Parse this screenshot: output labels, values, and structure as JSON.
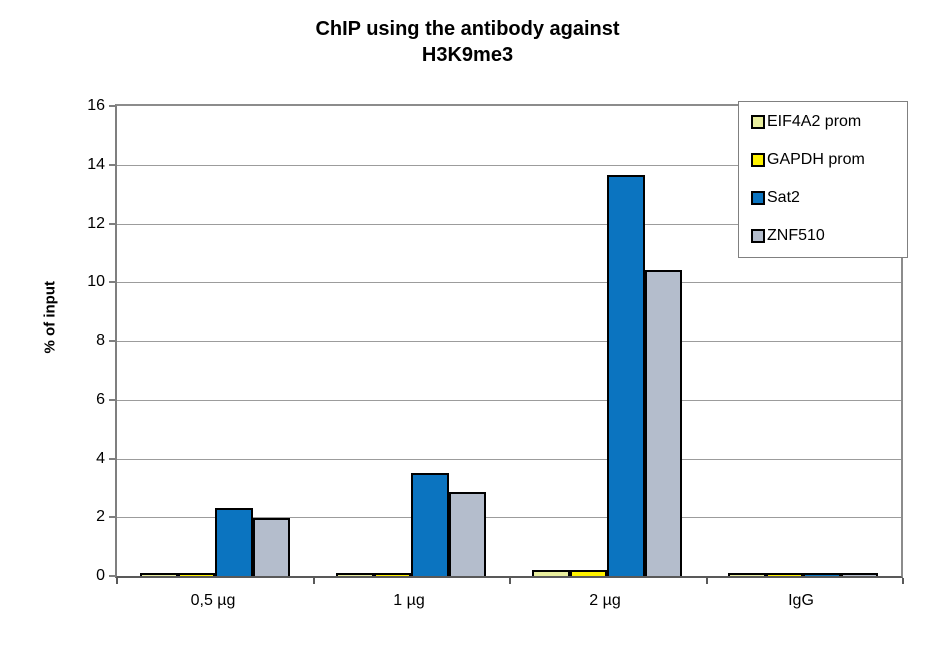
{
  "title": {
    "line1": "ChIP using the antibody against",
    "line2": "H3K9me3"
  },
  "chart_data": {
    "type": "bar",
    "title": "ChIP using the antibody against H3K9me3",
    "categories": [
      "0,5 µg",
      "1 µg",
      "2 µg",
      "IgG"
    ],
    "series": [
      {
        "name": "EIF4A2 prom",
        "color": "#e9ee9e",
        "values": [
          0.03,
          0.03,
          0.15,
          0.03
        ]
      },
      {
        "name": "GAPDH prom",
        "color": "#fff200",
        "values": [
          0.03,
          0.05,
          0.13,
          0.03
        ]
      },
      {
        "name": "Sat2",
        "color": "#0b74c0",
        "values": [
          2.25,
          3.45,
          13.6,
          0.03
        ]
      },
      {
        "name": "ZNF510",
        "color": "#b4bdcc",
        "values": [
          1.9,
          2.8,
          10.35,
          0.03
        ]
      }
    ],
    "xlabel": "",
    "ylabel": "% of input",
    "ylim": [
      0,
      16
    ],
    "yticks": [
      0,
      2,
      4,
      6,
      8,
      10,
      12,
      14,
      16
    ],
    "grid": true,
    "legend_position": "top-right",
    "bar_border_color": "#000000",
    "gridline_color": "#9c9c9c",
    "axis_color": "#595959"
  }
}
